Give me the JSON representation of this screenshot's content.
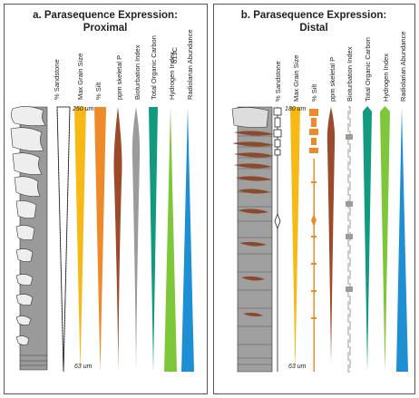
{
  "panels": [
    {
      "title": [
        "a. Parasequence Expression:",
        "Proximal"
      ],
      "columns": [
        "% Sandstone",
        "Max Grain Size",
        "% Silt",
        "ppm skeletal P",
        "Bioturbation Index",
        "Total Organic Carbon",
        "Hydrogen Index",
        "Radiolarian Abundance"
      ],
      "isotope_label": "δ13C",
      "scale_top": "250 um",
      "scale_bottom": "63 um"
    },
    {
      "title": [
        "b. Parasequence Expression:",
        "Distal"
      ],
      "columns": [
        "% Sandstone",
        "Max Grain Size",
        "% Silt",
        "ppm skeletal P",
        "Bioturbation Index",
        "Total Organic Carbon",
        "Hydrogen Index",
        "Radiolarian Abundance"
      ],
      "scale_top": "180 um",
      "scale_bottom": "63 um"
    }
  ]
}
